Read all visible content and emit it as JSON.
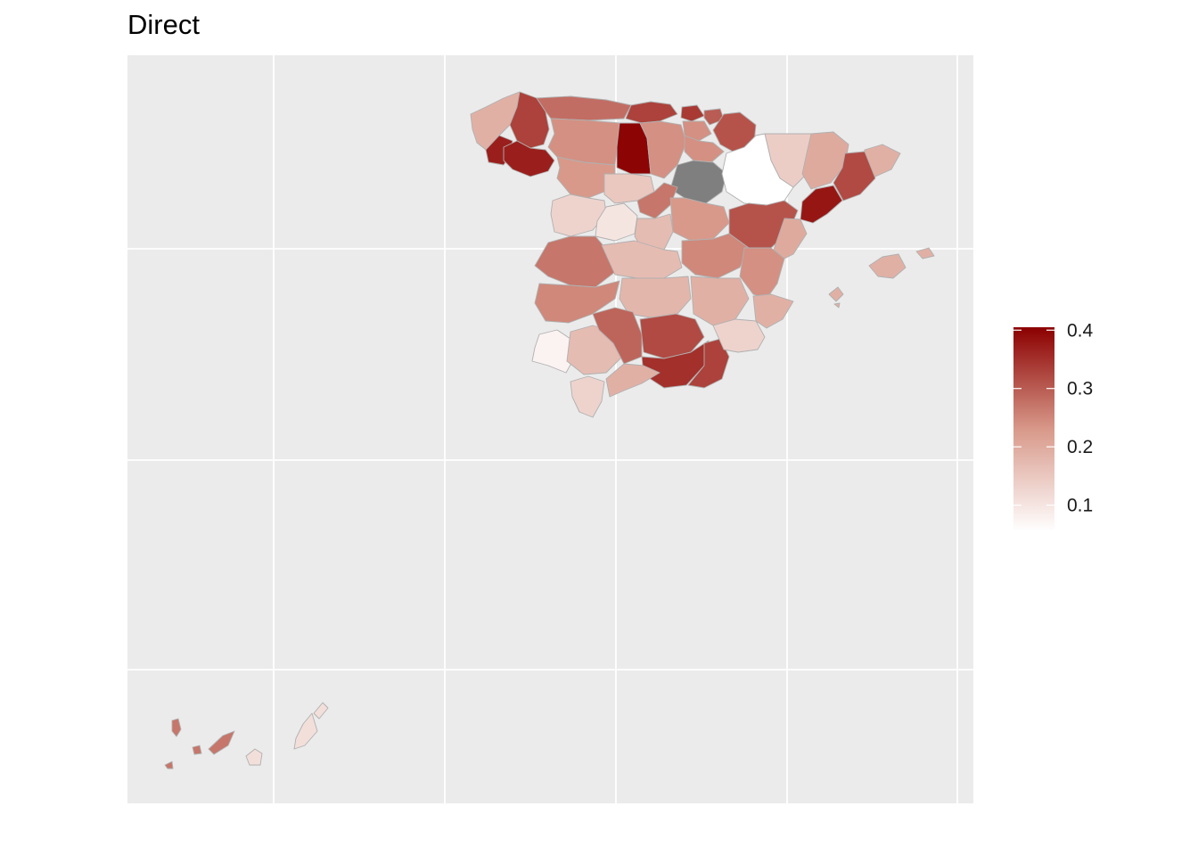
{
  "title": "Direct",
  "colors": {
    "panel_background": "#EBEBEB",
    "grid": "#FFFFFF",
    "border": "#B0B0B0",
    "missing": "#7F7F7F",
    "scale_low": "#FFFFFF",
    "scale_mid": "#D8998A",
    "scale_high": "#8B0000"
  },
  "legend": {
    "type": "continuous",
    "min": 0.055,
    "max": 0.405,
    "breaks": [
      0.1,
      0.2,
      0.3,
      0.4
    ],
    "labels": [
      "0.1",
      "0.2",
      "0.3",
      "0.4"
    ]
  },
  "regions": [
    {
      "id": "a-coruna",
      "value": 0.19
    },
    {
      "id": "lugo",
      "value": 0.33
    },
    {
      "id": "pontevedra",
      "value": 0.37
    },
    {
      "id": "ourense",
      "value": 0.37
    },
    {
      "id": "asturias",
      "value": 0.28
    },
    {
      "id": "cantabria",
      "value": 0.33
    },
    {
      "id": "bizkaia",
      "value": 0.34
    },
    {
      "id": "gipuzkoa",
      "value": 0.3
    },
    {
      "id": "alava",
      "value": 0.24
    },
    {
      "id": "navarra",
      "value": 0.31
    },
    {
      "id": "huesca",
      "value": 0.14
    },
    {
      "id": "girona",
      "value": 0.19
    },
    {
      "id": "lleida",
      "value": 0.2
    },
    {
      "id": "barcelona",
      "value": 0.32
    },
    {
      "id": "tarragona",
      "value": 0.38
    },
    {
      "id": "leon",
      "value": 0.24
    },
    {
      "id": "palencia",
      "value": 0.4
    },
    {
      "id": "burgos",
      "value": 0.24
    },
    {
      "id": "la-rioja",
      "value": 0.24
    },
    {
      "id": "soria",
      "value": null
    },
    {
      "id": "zaragoza",
      "value": 0.055
    },
    {
      "id": "zamora",
      "value": 0.23
    },
    {
      "id": "valladolid",
      "value": 0.15
    },
    {
      "id": "segovia",
      "value": 0.27
    },
    {
      "id": "salamanca",
      "value": 0.13
    },
    {
      "id": "avila",
      "value": 0.1
    },
    {
      "id": "madrid",
      "value": 0.17
    },
    {
      "id": "guadalajara",
      "value": 0.23
    },
    {
      "id": "teruel",
      "value": 0.31
    },
    {
      "id": "castellon",
      "value": 0.2
    },
    {
      "id": "caceres",
      "value": 0.27
    },
    {
      "id": "toledo",
      "value": 0.17
    },
    {
      "id": "cuenca",
      "value": 0.25
    },
    {
      "id": "valencia",
      "value": 0.24
    },
    {
      "id": "badajoz",
      "value": 0.25
    },
    {
      "id": "ciudad-real",
      "value": 0.18
    },
    {
      "id": "albacete",
      "value": 0.19
    },
    {
      "id": "alicante",
      "value": 0.19
    },
    {
      "id": "huelva",
      "value": 0.075
    },
    {
      "id": "sevilla",
      "value": 0.17
    },
    {
      "id": "cordoba",
      "value": 0.29
    },
    {
      "id": "jaen",
      "value": 0.32
    },
    {
      "id": "granada",
      "value": 0.35
    },
    {
      "id": "almeria",
      "value": 0.33
    },
    {
      "id": "murcia",
      "value": 0.13
    },
    {
      "id": "cadiz",
      "value": 0.13
    },
    {
      "id": "malaga",
      "value": 0.19
    },
    {
      "id": "baleares",
      "value": 0.19
    },
    {
      "id": "santa-cruz-de-tenerife",
      "value": 0.27
    },
    {
      "id": "las-palmas",
      "value": 0.11
    }
  ]
}
